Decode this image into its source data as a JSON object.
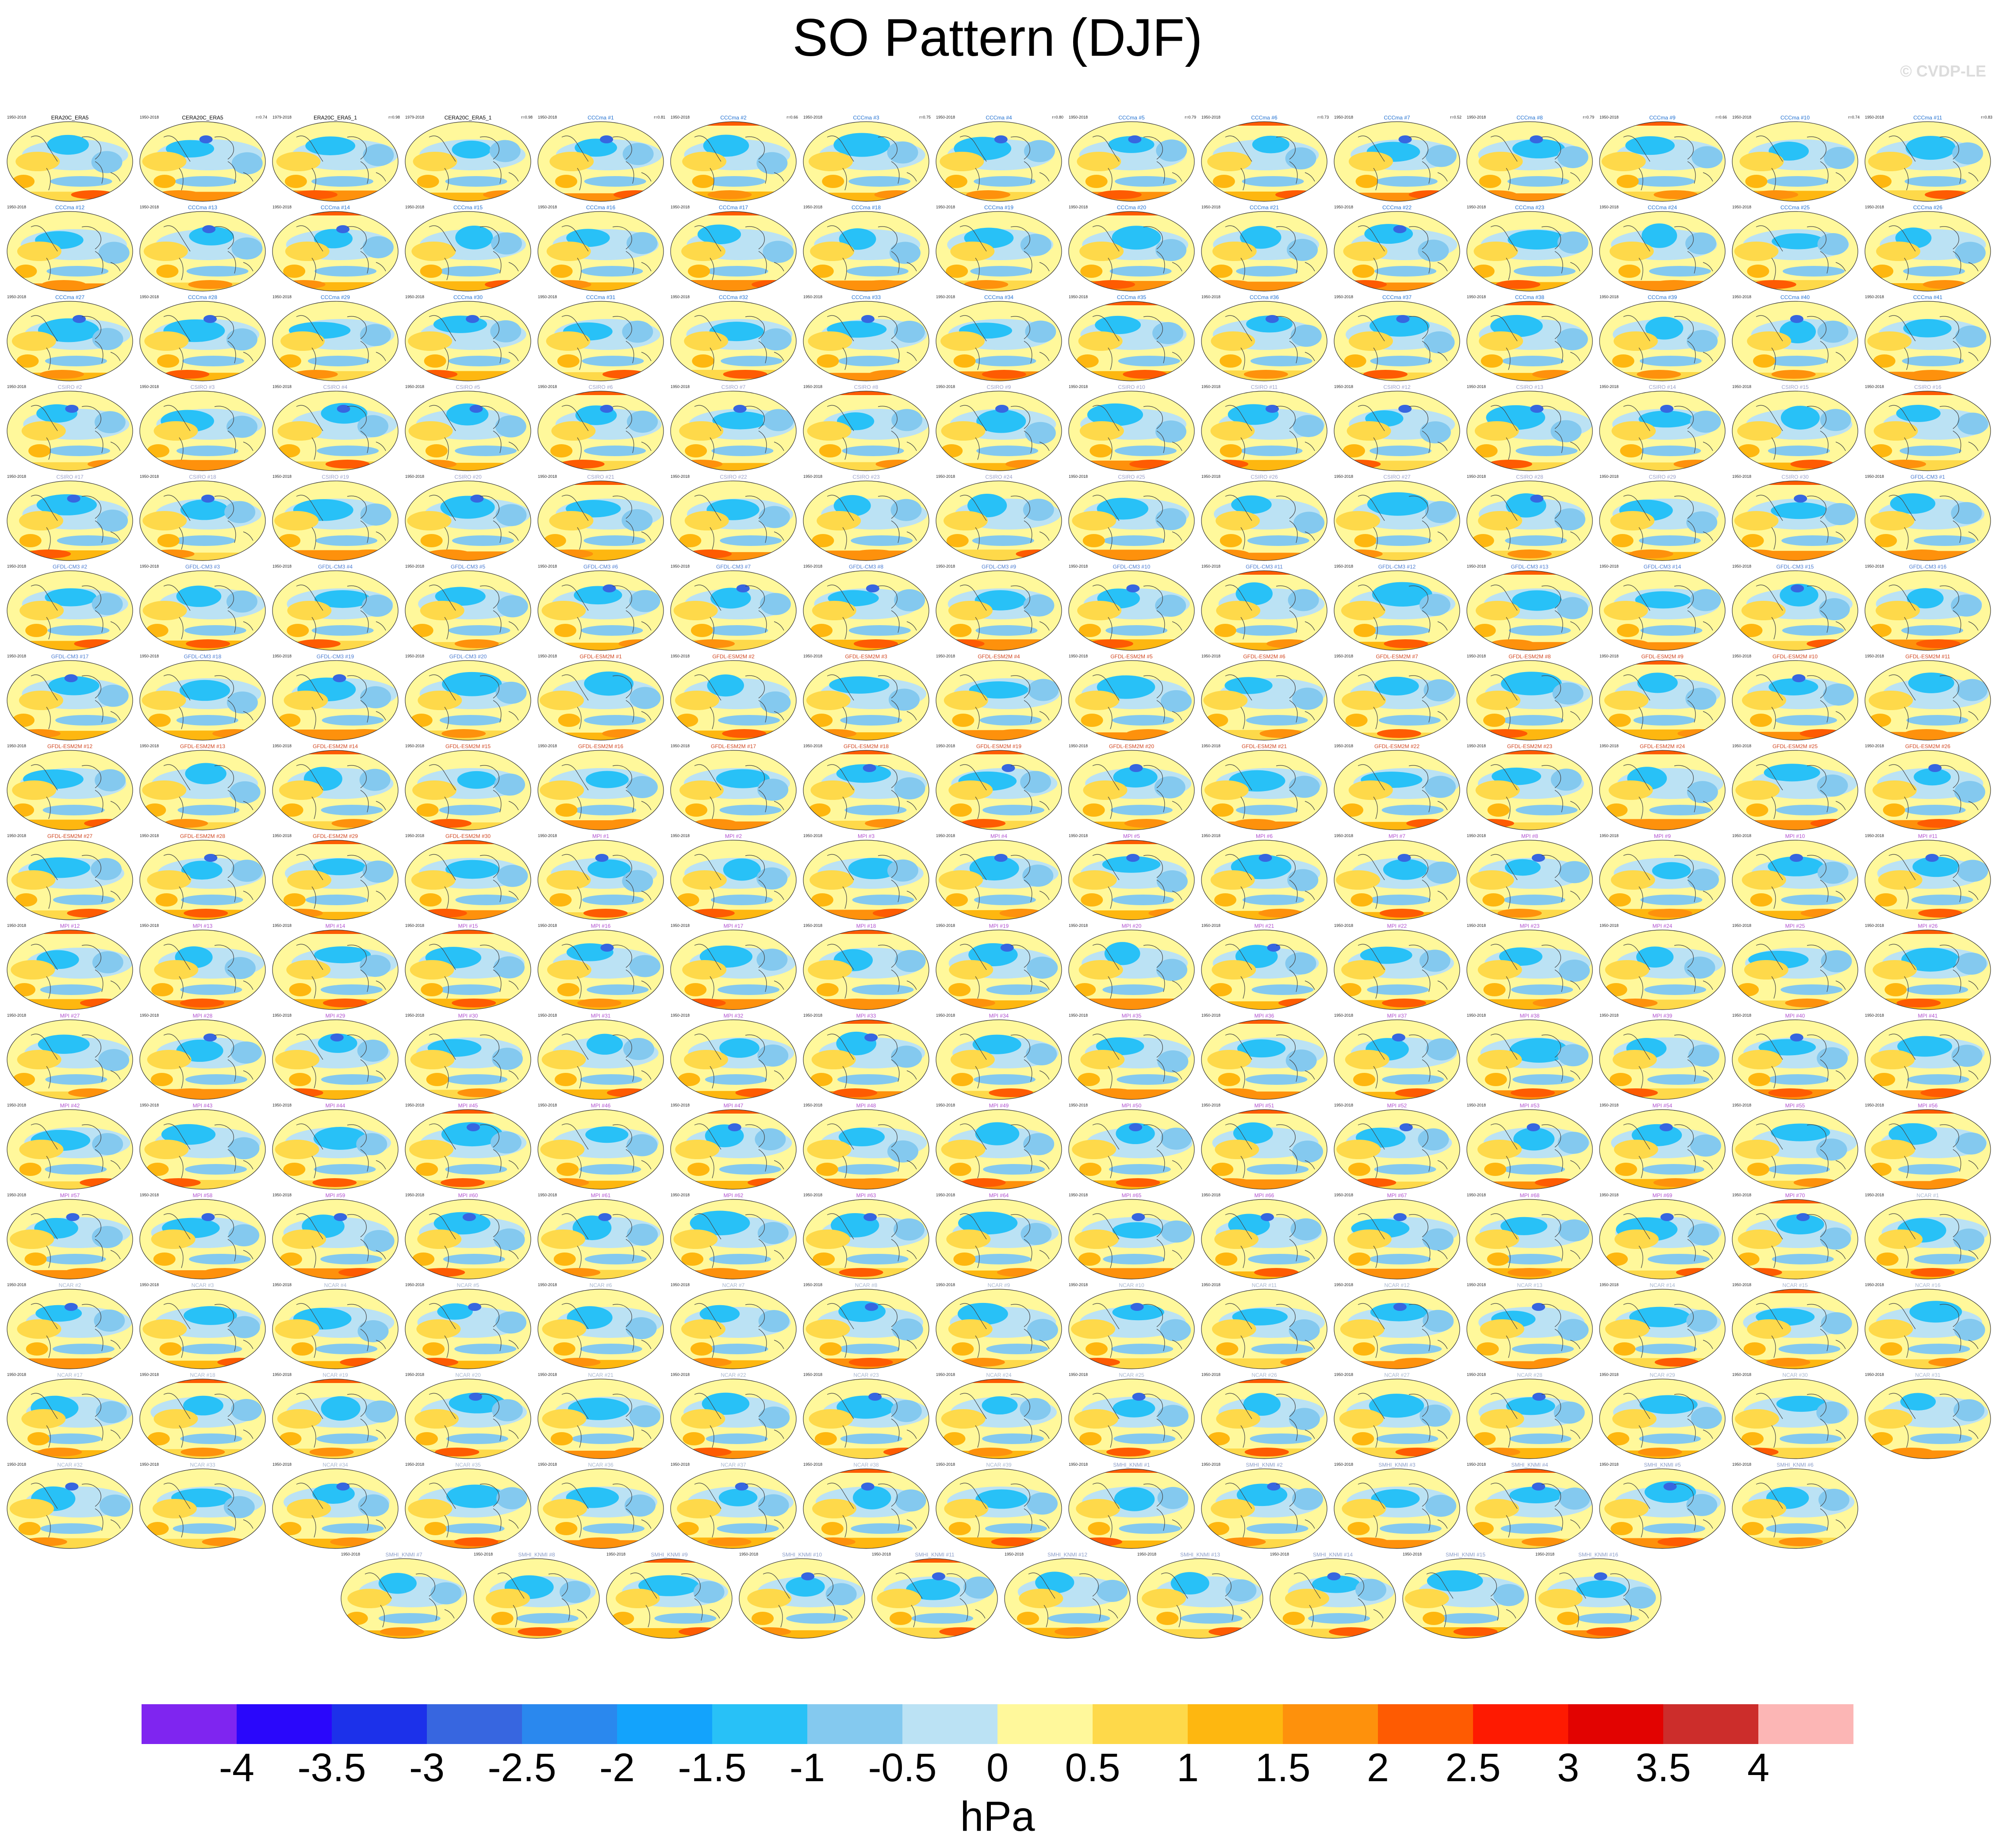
{
  "title": "SO Pattern (DJF)",
  "watermark": "© CVDP-LE",
  "chart_data": {
    "type": "heatmap",
    "description_of_panels": "Small-multiple global maps of the DJF Southern Oscillation sea level pressure regression pattern",
    "colorbar": {
      "units": "hPa",
      "tick_labels": [
        "-4",
        "-3.5",
        "-3",
        "-2.5",
        "-2",
        "-1.5",
        "-1",
        "-0.5",
        "0",
        "0.5",
        "1",
        "1.5",
        "2",
        "2.5",
        "3",
        "3.5",
        "4"
      ],
      "colors": [
        "#7f25f0",
        "#2a07fb",
        "#1c31ea",
        "#3766e0",
        "#2a88ee",
        "#13a3fc",
        "#28c1f7",
        "#84c9ef",
        "#bbe2f4",
        "#fff89b",
        "#fed94a",
        "#feb710",
        "#fe910c",
        "#fe5b02",
        "#fe1a01",
        "#e20301",
        "#cc2d2b",
        "#fcb6b5"
      ]
    },
    "rows": [
      [
        "ERA20C_ERA5",
        "CERA20C_ERA5",
        "ERA20C_ERA5_1",
        "CERA20C_ERA5_1",
        "CCCma #1",
        "CCCma #2",
        "CCCma #3",
        "CCCma #4",
        "CCCma #5",
        "CCCma #6",
        "CCCma #7",
        "CCCma #8",
        "CCCma #9",
        "CCCma #10",
        "CCCma #11"
      ],
      [
        "CCCma #12",
        "CCCma #13",
        "CCCma #14",
        "CCCma #15",
        "CCCma #16",
        "CCCma #17",
        "CCCma #18",
        "CCCma #19",
        "CCCma #20",
        "CCCma #21",
        "CCCma #22",
        "CCCma #23",
        "CCCma #24",
        "CCCma #25",
        "CCCma #26"
      ],
      [
        "CCCma #27",
        "CCCma #28",
        "CCCma #29",
        "CCCma #30",
        "CCCma #31",
        "CCCma #32",
        "CCCma #33",
        "CCCma #34",
        "CCCma #35",
        "CCCma #36",
        "CCCma #37",
        "CCCma #38",
        "CCCma #39",
        "CCCma #40",
        "CCCma #41"
      ],
      [
        "CSIRO #2",
        "CSIRO #3",
        "CSIRO #4",
        "CSIRO #5",
        "CSIRO #6",
        "CSIRO #7",
        "CSIRO #8",
        "CSIRO #9",
        "CSIRO #10",
        "CSIRO #11",
        "CSIRO #12",
        "CSIRO #13",
        "CSIRO #14",
        "CSIRO #15",
        "CSIRO #16"
      ],
      [
        "CSIRO #17",
        "CSIRO #18",
        "CSIRO #19",
        "CSIRO #20",
        "CSIRO #21",
        "CSIRO #22",
        "CSIRO #23",
        "CSIRO #24",
        "CSIRO #25",
        "CSIRO #26",
        "CSIRO #27",
        "CSIRO #28",
        "CSIRO #29",
        "CSIRO #30",
        "GFDL-CM3 #1"
      ],
      [
        "GFDL-CM3 #2",
        "GFDL-CM3 #3",
        "GFDL-CM3 #4",
        "GFDL-CM3 #5",
        "GFDL-CM3 #6",
        "GFDL-CM3 #7",
        "GFDL-CM3 #8",
        "GFDL-CM3 #9",
        "GFDL-CM3 #10",
        "GFDL-CM3 #11",
        "GFDL-CM3 #12",
        "GFDL-CM3 #13",
        "GFDL-CM3 #14",
        "GFDL-CM3 #15",
        "GFDL-CM3 #16"
      ],
      [
        "GFDL-CM3 #17",
        "GFDL-CM3 #18",
        "GFDL-CM3 #19",
        "GFDL-CM3 #20",
        "GFDL-ESM2M #1",
        "GFDL-ESM2M #2",
        "GFDL-ESM2M #3",
        "GFDL-ESM2M #4",
        "GFDL-ESM2M #5",
        "GFDL-ESM2M #6",
        "GFDL-ESM2M #7",
        "GFDL-ESM2M #8",
        "GFDL-ESM2M #9",
        "GFDL-ESM2M #10",
        "GFDL-ESM2M #11"
      ],
      [
        "GFDL-ESM2M #12",
        "GFDL-ESM2M #13",
        "GFDL-ESM2M #14",
        "GFDL-ESM2M #15",
        "GFDL-ESM2M #16",
        "GFDL-ESM2M #17",
        "GFDL-ESM2M #18",
        "GFDL-ESM2M #19",
        "GFDL-ESM2M #20",
        "GFDL-ESM2M #21",
        "GFDL-ESM2M #22",
        "GFDL-ESM2M #23",
        "GFDL-ESM2M #24",
        "GFDL-ESM2M #25",
        "GFDL-ESM2M #26"
      ],
      [
        "GFDL-ESM2M #27",
        "GFDL-ESM2M #28",
        "GFDL-ESM2M #29",
        "GFDL-ESM2M #30",
        "MPI #1",
        "MPI #2",
        "MPI #3",
        "MPI #4",
        "MPI #5",
        "MPI #6",
        "MPI #7",
        "MPI #8",
        "MPI #9",
        "MPI #10",
        "MPI #11"
      ],
      [
        "MPI #12",
        "MPI #13",
        "MPI #14",
        "MPI #15",
        "MPI #16",
        "MPI #17",
        "MPI #18",
        "MPI #19",
        "MPI #20",
        "MPI #21",
        "MPI #22",
        "MPI #23",
        "MPI #24",
        "MPI #25",
        "MPI #26"
      ],
      [
        "MPI #27",
        "MPI #28",
        "MPI #29",
        "MPI #30",
        "MPI #31",
        "MPI #32",
        "MPI #33",
        "MPI #34",
        "MPI #35",
        "MPI #36",
        "MPI #37",
        "MPI #38",
        "MPI #39",
        "MPI #40",
        "MPI #41"
      ],
      [
        "MPI #42",
        "MPI #43",
        "MPI #44",
        "MPI #45",
        "MPI #46",
        "MPI #47",
        "MPI #48",
        "MPI #49",
        "MPI #50",
        "MPI #51",
        "MPI #52",
        "MPI #53",
        "MPI #54",
        "MPI #55",
        "MPI #56"
      ],
      [
        "MPI #57",
        "MPI #58",
        "MPI #59",
        "MPI #60",
        "MPI #61",
        "MPI #62",
        "MPI #63",
        "MPI #64",
        "MPI #65",
        "MPI #66",
        "MPI #67",
        "MPI #68",
        "MPI #69",
        "MPI #70",
        "NCAR #1"
      ],
      [
        "NCAR #2",
        "NCAR #3",
        "NCAR #4",
        "NCAR #5",
        "NCAR #6",
        "NCAR #7",
        "NCAR #8",
        "NCAR #9",
        "NCAR #10",
        "NCAR #11",
        "NCAR #12",
        "NCAR #13",
        "NCAR #14",
        "NCAR #15",
        "NCAR #16"
      ],
      [
        "NCAR #17",
        "NCAR #18",
        "NCAR #19",
        "NCAR #20",
        "NCAR #21",
        "NCAR #22",
        "NCAR #23",
        "NCAR #24",
        "NCAR #25",
        "NCAR #26",
        "NCAR #27",
        "NCAR #28",
        "NCAR #29",
        "NCAR #30",
        "NCAR #31"
      ],
      [
        "NCAR #32",
        "NCAR #33",
        "NCAR #34",
        "NCAR #35",
        "NCAR #36",
        "NCAR #37",
        "NCAR #38",
        "NCAR #39",
        "SMHI_KNMI #1",
        "SMHI_KNMI #2",
        "SMHI_KNMI #3",
        "SMHI_KNMI #4",
        "SMHI_KNMI #5",
        "SMHI_KNMI #6"
      ],
      [
        "SMHI_KNMI #7",
        "SMHI_KNMI #8",
        "SMHI_KNMI #9",
        "SMHI_KNMI #10",
        "SMHI_KNMI #11",
        "SMHI_KNMI #12",
        "SMHI_KNMI #13",
        "SMHI_KNMI #14",
        "SMHI_KNMI #15",
        "SMHI_KNMI #16"
      ]
    ],
    "panel_years": [
      "1950-2018",
      "1950-2018",
      "1979-2018",
      "1979-2018"
    ],
    "default_panel_years": "1950-2018",
    "first_row_corr": [
      "",
      "r=0.74",
      "r=0.98",
      "r=0.98",
      "r=0.81",
      "r=0.66",
      "r=0.75",
      "r=0.80",
      "r=0.79",
      "r=0.73",
      "r=0.52",
      "r=0.79",
      "r=0.66",
      "r=0.74",
      "r=0.83"
    ],
    "name_colors": {
      "ERA20C": "#000000",
      "CERA20C": "#000000",
      "CCCma": "#1f6fd0",
      "CSIRO": "#9aa0c8",
      "GFDL-CM3": "#4a7bd0",
      "GFDL-ESM2M": "#d0451f",
      "MPI": "#b050d0",
      "NCAR": "#a9b7d0",
      "SMHI_KNMI": "#8a9cc8"
    }
  }
}
